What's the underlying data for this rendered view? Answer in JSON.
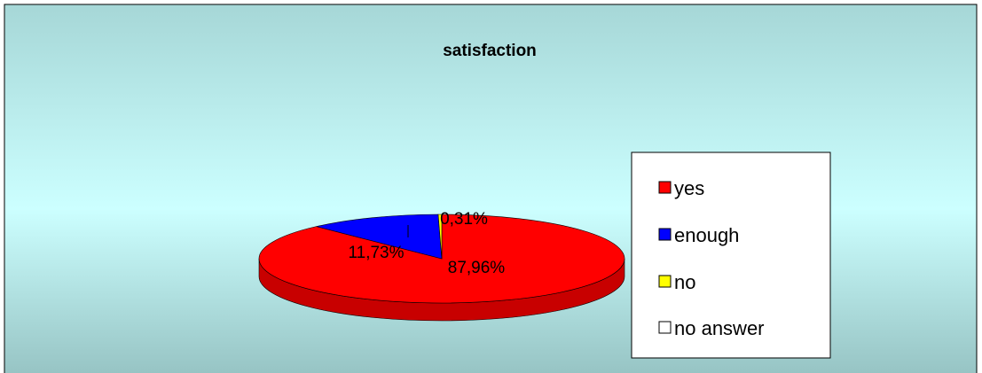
{
  "chart_data": {
    "type": "pie",
    "title": "satisfaction",
    "style": "3d",
    "legend_position": "right",
    "series": [
      {
        "name": "yes",
        "value": 87.96,
        "label": "87,96%",
        "color": "#ff0000",
        "side_color": "#c80000"
      },
      {
        "name": "enough",
        "value": 11.73,
        "label": "11,73%",
        "color": "#0000ff",
        "side_color": "#0000b0"
      },
      {
        "name": "no",
        "value": 0.31,
        "label": "0,31%",
        "color": "#ffff00",
        "side_color": "#c8c800"
      },
      {
        "name": "no answer",
        "value": 0,
        "label": "",
        "color": "#ffffff",
        "side_color": "#d0d0d0"
      }
    ],
    "background_gradient": [
      "#a6d7d7",
      "#ccffff",
      "#96c3c3"
    ]
  }
}
